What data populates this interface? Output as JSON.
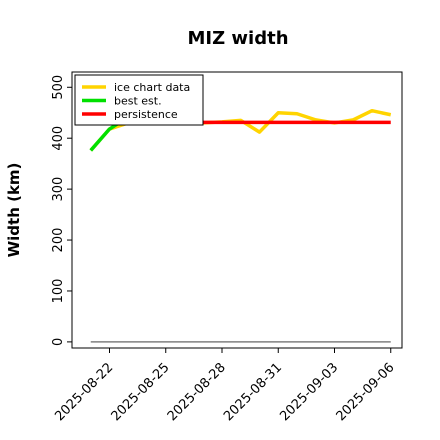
{
  "chart_data": {
    "type": "line",
    "title": "MIZ width",
    "xlabel": "",
    "ylabel": "Width (km)",
    "ylim": [
      -12,
      530
    ],
    "xlim": [
      "2025-08-20",
      "2025-09-06.6"
    ],
    "yticks": [
      0,
      100,
      200,
      300,
      400,
      500
    ],
    "xticks": [
      "2025-08-22",
      "2025-08-25",
      "2025-08-28",
      "2025-08-31",
      "2025-09-03",
      "2025-09-06"
    ],
    "legend_position": "top-left",
    "grid": false,
    "series": [
      {
        "name": "ice chart data",
        "color": "#ffd400",
        "points": [
          [
            "2025-08-21",
            376
          ],
          [
            "2025-08-22",
            418
          ],
          [
            "2025-08-23",
            430
          ],
          [
            "2025-08-24",
            430
          ],
          [
            "2025-08-25",
            430
          ],
          [
            "2025-08-26",
            430
          ],
          [
            "2025-08-27",
            430
          ],
          [
            "2025-08-28",
            432
          ],
          [
            "2025-08-29",
            435
          ],
          [
            "2025-08-30",
            412
          ],
          [
            "2025-08-31",
            450
          ],
          [
            "2025-09-01",
            448
          ],
          [
            "2025-09-02",
            436
          ],
          [
            "2025-09-03",
            430
          ],
          [
            "2025-09-04",
            436
          ],
          [
            "2025-09-05",
            454
          ],
          [
            "2025-09-06",
            446
          ]
        ]
      },
      {
        "name": "best est.",
        "color": "#00e000",
        "points": [
          [
            "2025-08-21",
            376
          ],
          [
            "2025-08-22",
            418
          ],
          [
            "2025-08-22.5",
            430
          ]
        ]
      },
      {
        "name": "persistence",
        "color": "#ff0000",
        "points": [
          [
            "2025-08-22.5",
            431
          ],
          [
            "2025-09-06",
            431
          ]
        ]
      }
    ],
    "baseline": {
      "color": "#808080",
      "points": [
        [
          "2025-08-21",
          0
        ],
        [
          "2025-09-06",
          0
        ]
      ]
    }
  }
}
